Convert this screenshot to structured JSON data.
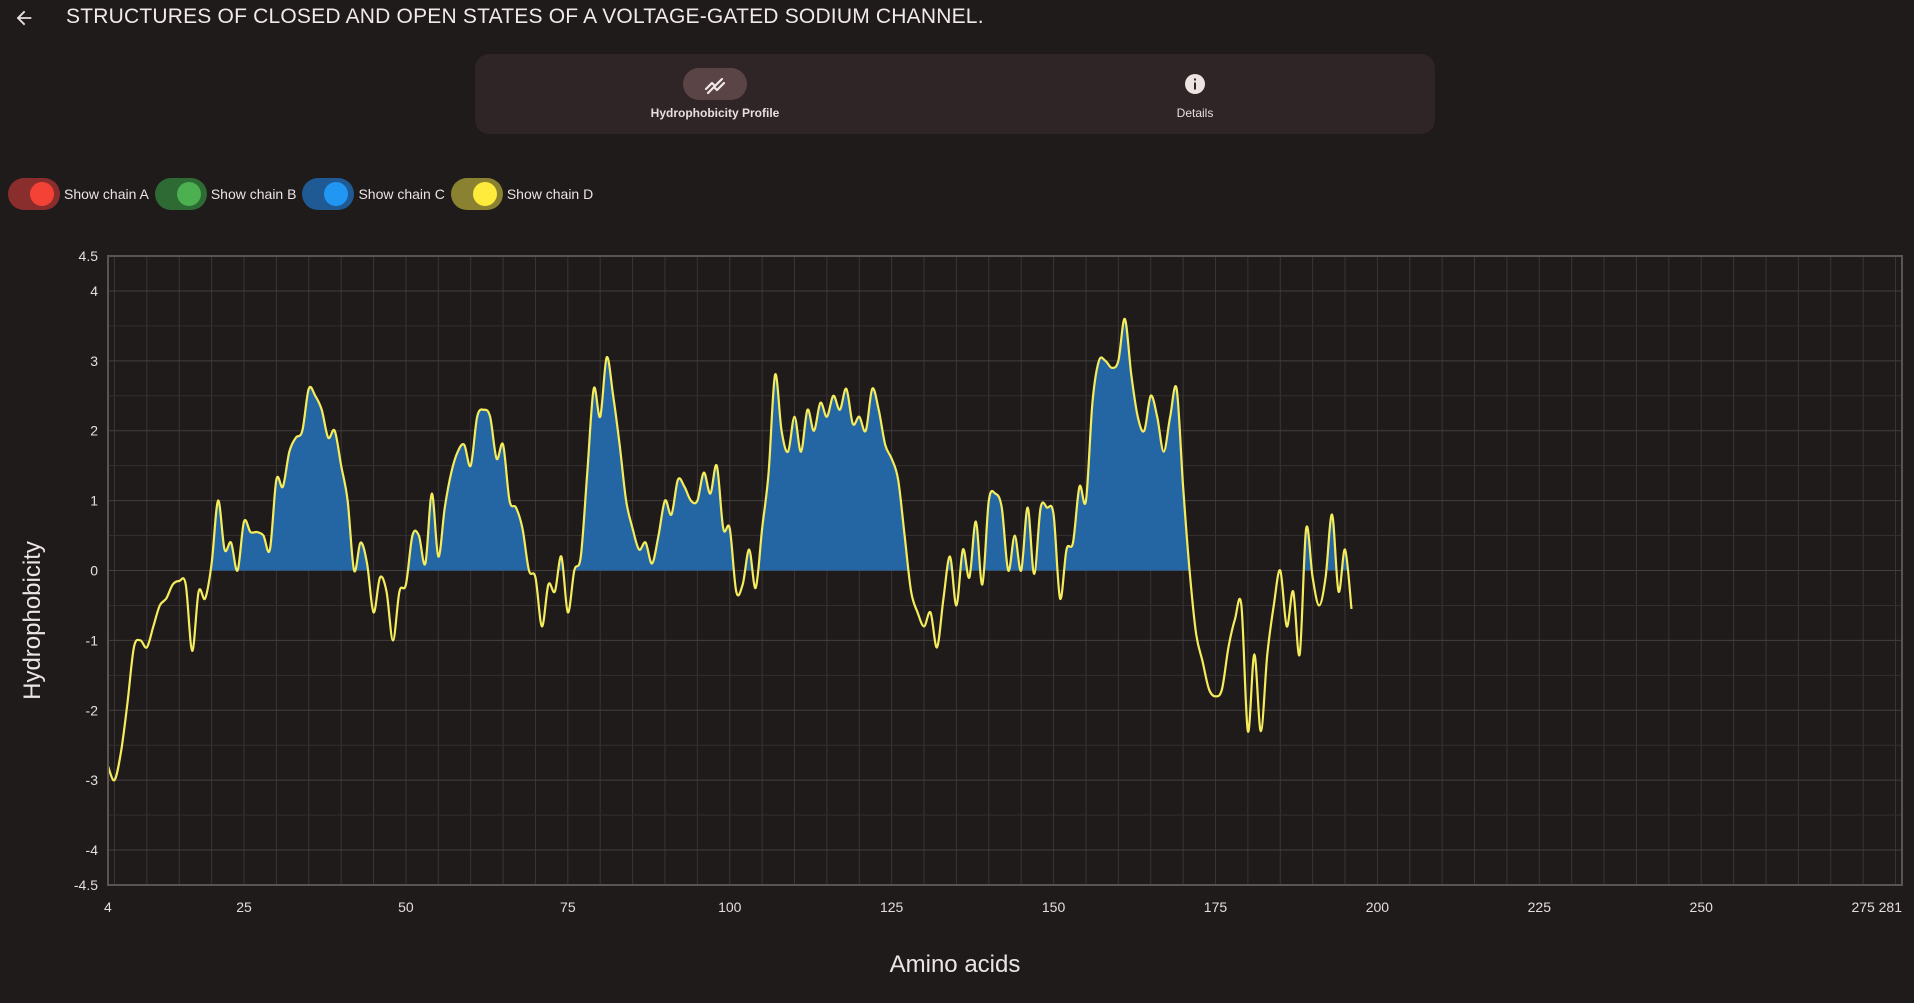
{
  "app": {
    "title": "STRUCTURES OF CLOSED AND OPEN STATES OF A VOLTAGE-GATED SODIUM CHANNEL."
  },
  "nav": {
    "items": [
      {
        "label": "Hydrophobicity Profile",
        "icon": "trending-chart-icon",
        "active": true
      },
      {
        "label": "Details",
        "icon": "info-icon",
        "active": false
      }
    ]
  },
  "toggles": [
    {
      "label": "Show chain A",
      "track_color": "#8a2d2d",
      "thumb_color": "#f44336",
      "on": true
    },
    {
      "label": "Show chain B",
      "track_color": "#2e6a33",
      "thumb_color": "#4caf50",
      "on": true
    },
    {
      "label": "Show chain C",
      "track_color": "#1f5a94",
      "thumb_color": "#2196f3",
      "on": true
    },
    {
      "label": "Show chain D",
      "track_color": "#8a8230",
      "thumb_color": "#ffeb3b",
      "on": true
    }
  ],
  "chart_data": {
    "type": "area",
    "xlabel": "Amino acids",
    "ylabel": "Hydrophobicity",
    "xlim": [
      4,
      281
    ],
    "ylim": [
      -4.5,
      4.5
    ],
    "x_ticks": [
      4,
      25,
      50,
      75,
      100,
      125,
      150,
      175,
      200,
      225,
      250,
      275,
      281
    ],
    "y_ticks": [
      4.5,
      4,
      3,
      2,
      1,
      0,
      -1,
      -2,
      -3,
      -4,
      -4.5
    ],
    "grid": true,
    "line_color": "#f5ec5c",
    "fill_color": "#2466a4",
    "series": [
      {
        "points": [
          [
            4,
            -2.8
          ],
          [
            5,
            -3.0
          ],
          [
            6,
            -2.6
          ],
          [
            7,
            -1.9
          ],
          [
            8,
            -1.1
          ],
          [
            9,
            -1.0
          ],
          [
            10,
            -1.1
          ],
          [
            11,
            -0.8
          ],
          [
            12,
            -0.5
          ],
          [
            13,
            -0.4
          ],
          [
            14,
            -0.2
          ],
          [
            15,
            -0.15
          ],
          [
            16,
            -0.2
          ],
          [
            17,
            -1.15
          ],
          [
            18,
            -0.3
          ],
          [
            19,
            -0.4
          ],
          [
            20,
            0.1
          ],
          [
            21,
            1.0
          ],
          [
            22,
            0.3
          ],
          [
            23,
            0.4
          ],
          [
            24,
            0.0
          ],
          [
            25,
            0.7
          ],
          [
            26,
            0.55
          ],
          [
            27,
            0.55
          ],
          [
            28,
            0.5
          ],
          [
            29,
            0.3
          ],
          [
            30,
            1.3
          ],
          [
            31,
            1.2
          ],
          [
            32,
            1.7
          ],
          [
            33,
            1.9
          ],
          [
            34,
            2.0
          ],
          [
            35,
            2.6
          ],
          [
            36,
            2.5
          ],
          [
            37,
            2.3
          ],
          [
            38,
            1.9
          ],
          [
            39,
            2.0
          ],
          [
            40,
            1.5
          ],
          [
            41,
            1.0
          ],
          [
            42,
            0.0
          ],
          [
            43,
            0.4
          ],
          [
            44,
            0.1
          ],
          [
            45,
            -0.6
          ],
          [
            46,
            -0.1
          ],
          [
            47,
            -0.3
          ],
          [
            48,
            -1.0
          ],
          [
            49,
            -0.3
          ],
          [
            50,
            -0.2
          ],
          [
            51,
            0.5
          ],
          [
            52,
            0.5
          ],
          [
            53,
            0.1
          ],
          [
            54,
            1.1
          ],
          [
            55,
            0.2
          ],
          [
            56,
            0.9
          ],
          [
            57,
            1.4
          ],
          [
            58,
            1.7
          ],
          [
            59,
            1.8
          ],
          [
            60,
            1.5
          ],
          [
            61,
            2.2
          ],
          [
            62,
            2.3
          ],
          [
            63,
            2.2
          ],
          [
            64,
            1.6
          ],
          [
            65,
            1.8
          ],
          [
            66,
            1.0
          ],
          [
            67,
            0.9
          ],
          [
            68,
            0.6
          ],
          [
            69,
            0.0
          ],
          [
            70,
            -0.1
          ],
          [
            71,
            -0.8
          ],
          [
            72,
            -0.2
          ],
          [
            73,
            -0.3
          ],
          [
            74,
            0.2
          ],
          [
            75,
            -0.6
          ],
          [
            76,
            0.0
          ],
          [
            77,
            0.2
          ],
          [
            78,
            1.4
          ],
          [
            79,
            2.6
          ],
          [
            80,
            2.2
          ],
          [
            81,
            3.05
          ],
          [
            82,
            2.5
          ],
          [
            83,
            1.8
          ],
          [
            84,
            1.0
          ],
          [
            85,
            0.6
          ],
          [
            86,
            0.3
          ],
          [
            87,
            0.4
          ],
          [
            88,
            0.1
          ],
          [
            89,
            0.5
          ],
          [
            90,
            1.0
          ],
          [
            91,
            0.8
          ],
          [
            92,
            1.3
          ],
          [
            93,
            1.2
          ],
          [
            94,
            1.0
          ],
          [
            95,
            1.0
          ],
          [
            96,
            1.4
          ],
          [
            97,
            1.1
          ],
          [
            98,
            1.5
          ],
          [
            99,
            0.6
          ],
          [
            100,
            0.6
          ],
          [
            101,
            -0.3
          ],
          [
            102,
            -0.2
          ],
          [
            103,
            0.3
          ],
          [
            104,
            -0.25
          ],
          [
            105,
            0.6
          ],
          [
            106,
            1.4
          ],
          [
            107,
            2.8
          ],
          [
            108,
            2.0
          ],
          [
            109,
            1.7
          ],
          [
            110,
            2.2
          ],
          [
            111,
            1.7
          ],
          [
            112,
            2.3
          ],
          [
            113,
            2.0
          ],
          [
            114,
            2.4
          ],
          [
            115,
            2.2
          ],
          [
            116,
            2.5
          ],
          [
            117,
            2.3
          ],
          [
            118,
            2.6
          ],
          [
            119,
            2.1
          ],
          [
            120,
            2.2
          ],
          [
            121,
            2.0
          ],
          [
            122,
            2.6
          ],
          [
            123,
            2.3
          ],
          [
            124,
            1.8
          ],
          [
            125,
            1.6
          ],
          [
            126,
            1.3
          ],
          [
            127,
            0.5
          ],
          [
            128,
            -0.3
          ],
          [
            129,
            -0.6
          ],
          [
            130,
            -0.8
          ],
          [
            131,
            -0.6
          ],
          [
            132,
            -1.1
          ],
          [
            133,
            -0.4
          ],
          [
            134,
            0.2
          ],
          [
            135,
            -0.5
          ],
          [
            136,
            0.3
          ],
          [
            137,
            -0.1
          ],
          [
            138,
            0.7
          ],
          [
            139,
            -0.2
          ],
          [
            140,
            1.0
          ],
          [
            141,
            1.1
          ],
          [
            142,
            0.9
          ],
          [
            143,
            0.0
          ],
          [
            144,
            0.5
          ],
          [
            145,
            0.0
          ],
          [
            146,
            0.9
          ],
          [
            147,
            -0.05
          ],
          [
            148,
            0.9
          ],
          [
            149,
            0.9
          ],
          [
            150,
            0.8
          ],
          [
            151,
            -0.4
          ],
          [
            152,
            0.3
          ],
          [
            153,
            0.4
          ],
          [
            154,
            1.2
          ],
          [
            155,
            1.0
          ],
          [
            156,
            2.4
          ],
          [
            157,
            3.0
          ],
          [
            158,
            3.0
          ],
          [
            159,
            2.9
          ],
          [
            160,
            3.0
          ],
          [
            161,
            3.6
          ],
          [
            162,
            2.8
          ],
          [
            163,
            2.2
          ],
          [
            164,
            2.0
          ],
          [
            165,
            2.5
          ],
          [
            166,
            2.2
          ],
          [
            167,
            1.7
          ],
          [
            168,
            2.2
          ],
          [
            169,
            2.6
          ],
          [
            170,
            1.2
          ],
          [
            171,
            0.0
          ],
          [
            172,
            -0.9
          ],
          [
            173,
            -1.3
          ],
          [
            174,
            -1.7
          ],
          [
            175,
            -1.8
          ],
          [
            176,
            -1.7
          ],
          [
            177,
            -1.1
          ],
          [
            178,
            -0.7
          ],
          [
            179,
            -0.5
          ],
          [
            180,
            -2.3
          ],
          [
            181,
            -1.2
          ],
          [
            182,
            -2.3
          ],
          [
            183,
            -1.2
          ],
          [
            184,
            -0.5
          ],
          [
            185,
            0.0
          ],
          [
            186,
            -0.8
          ],
          [
            187,
            -0.3
          ],
          [
            188,
            -1.2
          ],
          [
            189,
            0.6
          ],
          [
            190,
            -0.1
          ],
          [
            191,
            -0.5
          ],
          [
            192,
            -0.1
          ],
          [
            193,
            0.8
          ],
          [
            194,
            -0.3
          ],
          [
            195,
            0.3
          ],
          [
            196,
            -0.55
          ]
        ]
      }
    ]
  }
}
